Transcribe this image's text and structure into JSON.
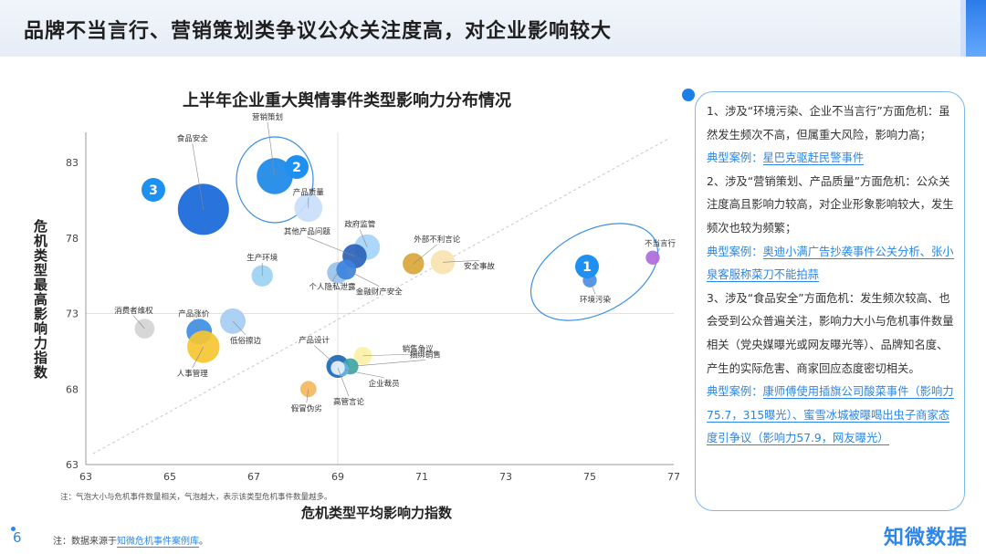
{
  "header": {
    "title": "品牌不当言行、营销策划类争议公众关注度高，对企业影响较大"
  },
  "chart_data": {
    "type": "scatter",
    "title": "上半年企业重大舆情事件类型影响力分布情况",
    "xlabel": "危机类型平均影响力指数",
    "ylabel": "危机类型最高影响力指数",
    "xlim": [
      63,
      77
    ],
    "ylim": [
      63,
      85
    ],
    "xticks": [
      "63",
      "65",
      "67",
      "69",
      "71",
      "73",
      "75",
      "77"
    ],
    "yticks": [
      "63",
      "68",
      "73",
      "78",
      "83"
    ],
    "note": "注：气泡大小与危机事件数量相关，气泡越大，表示该类型危机事件数量越多。",
    "points": [
      {
        "label": "食品安全",
        "x": 65.8,
        "y": 79.9,
        "size": 4.0,
        "color": "#1667d9"
      },
      {
        "label": "营销策划",
        "x": 67.5,
        "y": 82.1,
        "size": 2.0,
        "color": "#1b88e8"
      },
      {
        "label": "产品质量",
        "x": 68.3,
        "y": 80.0,
        "size": 1.2,
        "color": "#c9defa"
      },
      {
        "label": "政府监管",
        "x": 69.7,
        "y": 77.4,
        "size": 1.0,
        "color": "#a6d4f7"
      },
      {
        "label": "其他产品问题",
        "x": 69.4,
        "y": 76.8,
        "size": 0.9,
        "color": "#2a62b8"
      },
      {
        "label": "外部不利言论",
        "x": 70.8,
        "y": 76.3,
        "size": 0.7,
        "color": "#d9a63a"
      },
      {
        "label": "安全事故",
        "x": 71.5,
        "y": 76.4,
        "size": 0.9,
        "color": "#fae3b0"
      },
      {
        "label": "生产环境",
        "x": 67.2,
        "y": 75.5,
        "size": 0.7,
        "color": "#9bd2f1"
      },
      {
        "label": "个人隐私泄露",
        "x": 69.0,
        "y": 75.7,
        "size": 0.7,
        "color": "#9ac2ea"
      },
      {
        "label": "金融财产安全",
        "x": 69.2,
        "y": 75.9,
        "size": 0.6,
        "color": "#3b82e0"
      },
      {
        "label": "不当言行",
        "x": 76.5,
        "y": 76.7,
        "size": 0.3,
        "color": "#b06be0"
      },
      {
        "label": "",
        "x": 75.9,
        "y": 76.2,
        "size": 0.0,
        "color": "#1e90f0"
      },
      {
        "label": "环境污染",
        "x": 75.0,
        "y": 75.2,
        "size": 0.3,
        "color": "#4a8ee6"
      },
      {
        "label": "消费者维权",
        "x": 64.4,
        "y": 72.0,
        "size": 0.6,
        "color": "#d4d4d4"
      },
      {
        "label": "产品涨价",
        "x": 65.7,
        "y": 71.8,
        "size": 1.0,
        "color": "#3e8fe3"
      },
      {
        "label": "低俗擦边",
        "x": 66.5,
        "y": 72.5,
        "size": 1.0,
        "color": "#a6cdf1"
      },
      {
        "label": "人事管理",
        "x": 65.8,
        "y": 70.8,
        "size": 1.6,
        "color": "#f6c632"
      },
      {
        "label": "销售争议",
        "x": 69.6,
        "y": 70.2,
        "size": 0.5,
        "color": "#fbf2a6"
      },
      {
        "label": "产品设计",
        "x": 69.0,
        "y": 69.5,
        "size": 0.8,
        "color": "#1c68b6"
      },
      {
        "label": "捆绑销售",
        "x": 69.3,
        "y": 69.5,
        "size": 0.4,
        "color": "#3ea6a6"
      },
      {
        "label": "企业裁员",
        "x": 69.1,
        "y": 69.3,
        "size": 0.3,
        "color": "#66b5e8"
      },
      {
        "label": "高管言论",
        "x": 69.0,
        "y": 69.4,
        "size": 0.3,
        "color": "#e8f1fb"
      },
      {
        "label": "假冒伪劣",
        "x": 68.3,
        "y": 68.0,
        "size": 0.4,
        "color": "#f3b95f"
      }
    ],
    "groups": [
      {
        "label": "1"
      },
      {
        "label": "2"
      },
      {
        "label": "3"
      }
    ]
  },
  "panel": {
    "p1": "1、涉及“环境污染、企业不当言行”方面危机：虽然发生频次不高，但属重大风险，影响力高；",
    "p1_case_label": "典型案例：",
    "p1_case": "星巴克驱赶民警事件",
    "p2": "2、涉及“营销策划、产品质量”方面危机：公众关注度高且影响力较高，对企业形象影响较大，发生频次也较为频繁；",
    "p2_case_label": "典型案例：",
    "p2_case": "奥迪小满广告抄袭事件公关分析、张小泉客服称菜刀不能拍蒜",
    "p3": "3、涉及“食品安全”方面危机：发生频次较高、也会受到公众普遍关注，影响力大小与危机事件数量相关（党央媒曝光或网友曝光等）、品牌知名度、产生的实际危害、商家回应态度密切相关。",
    "p3_case_label": "典型案例：",
    "p3_case": "康师傅使用插旗公司酸菜事件（影响力75.7，315曝光）、蜜雪冰城被曝喝出虫子商家态度引争议（影响力57.9，网友曝光）"
  },
  "footer": {
    "page": "6",
    "source_prefix": "注：数据来源于",
    "source_link": "知微危机事件案例库",
    "source_suffix": "。",
    "logo": "知微数据"
  },
  "colors": {
    "accent": "#2a86e8",
    "panel_border": "#7fb7f0"
  }
}
